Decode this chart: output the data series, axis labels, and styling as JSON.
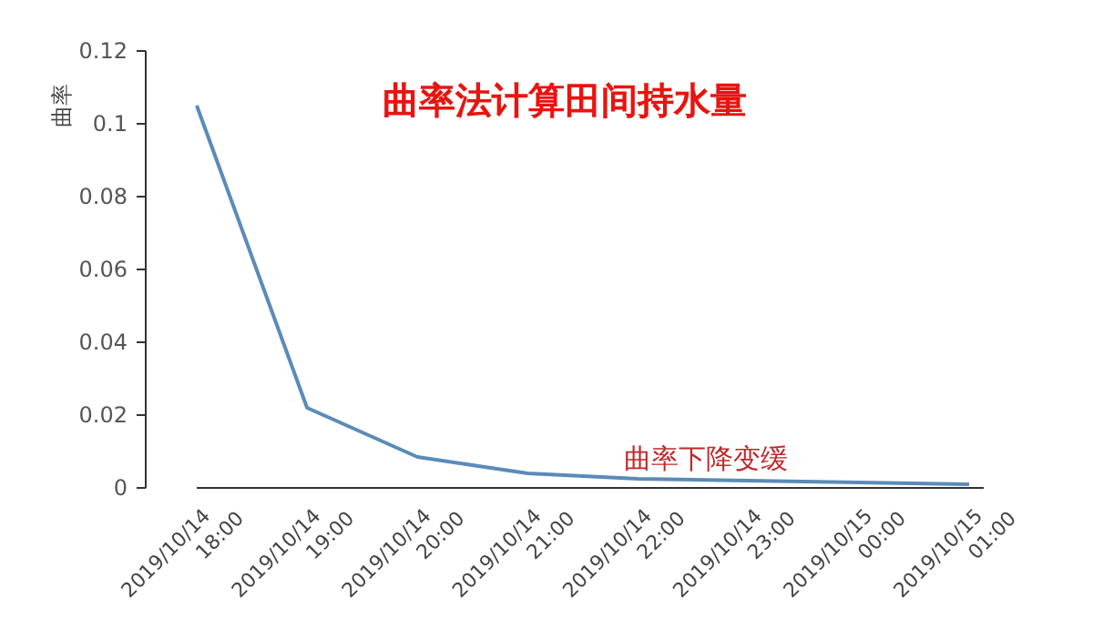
{
  "chart_data": {
    "type": "line",
    "title": "曲率法计算田间持水量",
    "ylabel": "曲率",
    "categories": [
      "2019/10/14 18:00",
      "2019/10/14 19:00",
      "2019/10/14 20:00",
      "2019/10/14 21:00",
      "2019/10/14 22:00",
      "2019/10/14 23:00",
      "2019/10/15 00:00",
      "2019/10/15 01:00"
    ],
    "series": [
      {
        "color": "#5b8bb8",
        "values": [
          0.105,
          0.022,
          0.0085,
          0.004,
          0.0025,
          0.002,
          0.0015,
          0.001
        ]
      }
    ],
    "ylim": [
      0,
      0.12
    ],
    "yticks": [
      0,
      0.02,
      0.04,
      0.06,
      0.08,
      0.1,
      0.12
    ],
    "grid": false,
    "marker": "none",
    "line_style": "solid",
    "annotations": [
      {
        "text": "曲率下降变缓",
        "x": "2019/10/14 22:00",
        "y": 0.0025
      }
    ]
  }
}
